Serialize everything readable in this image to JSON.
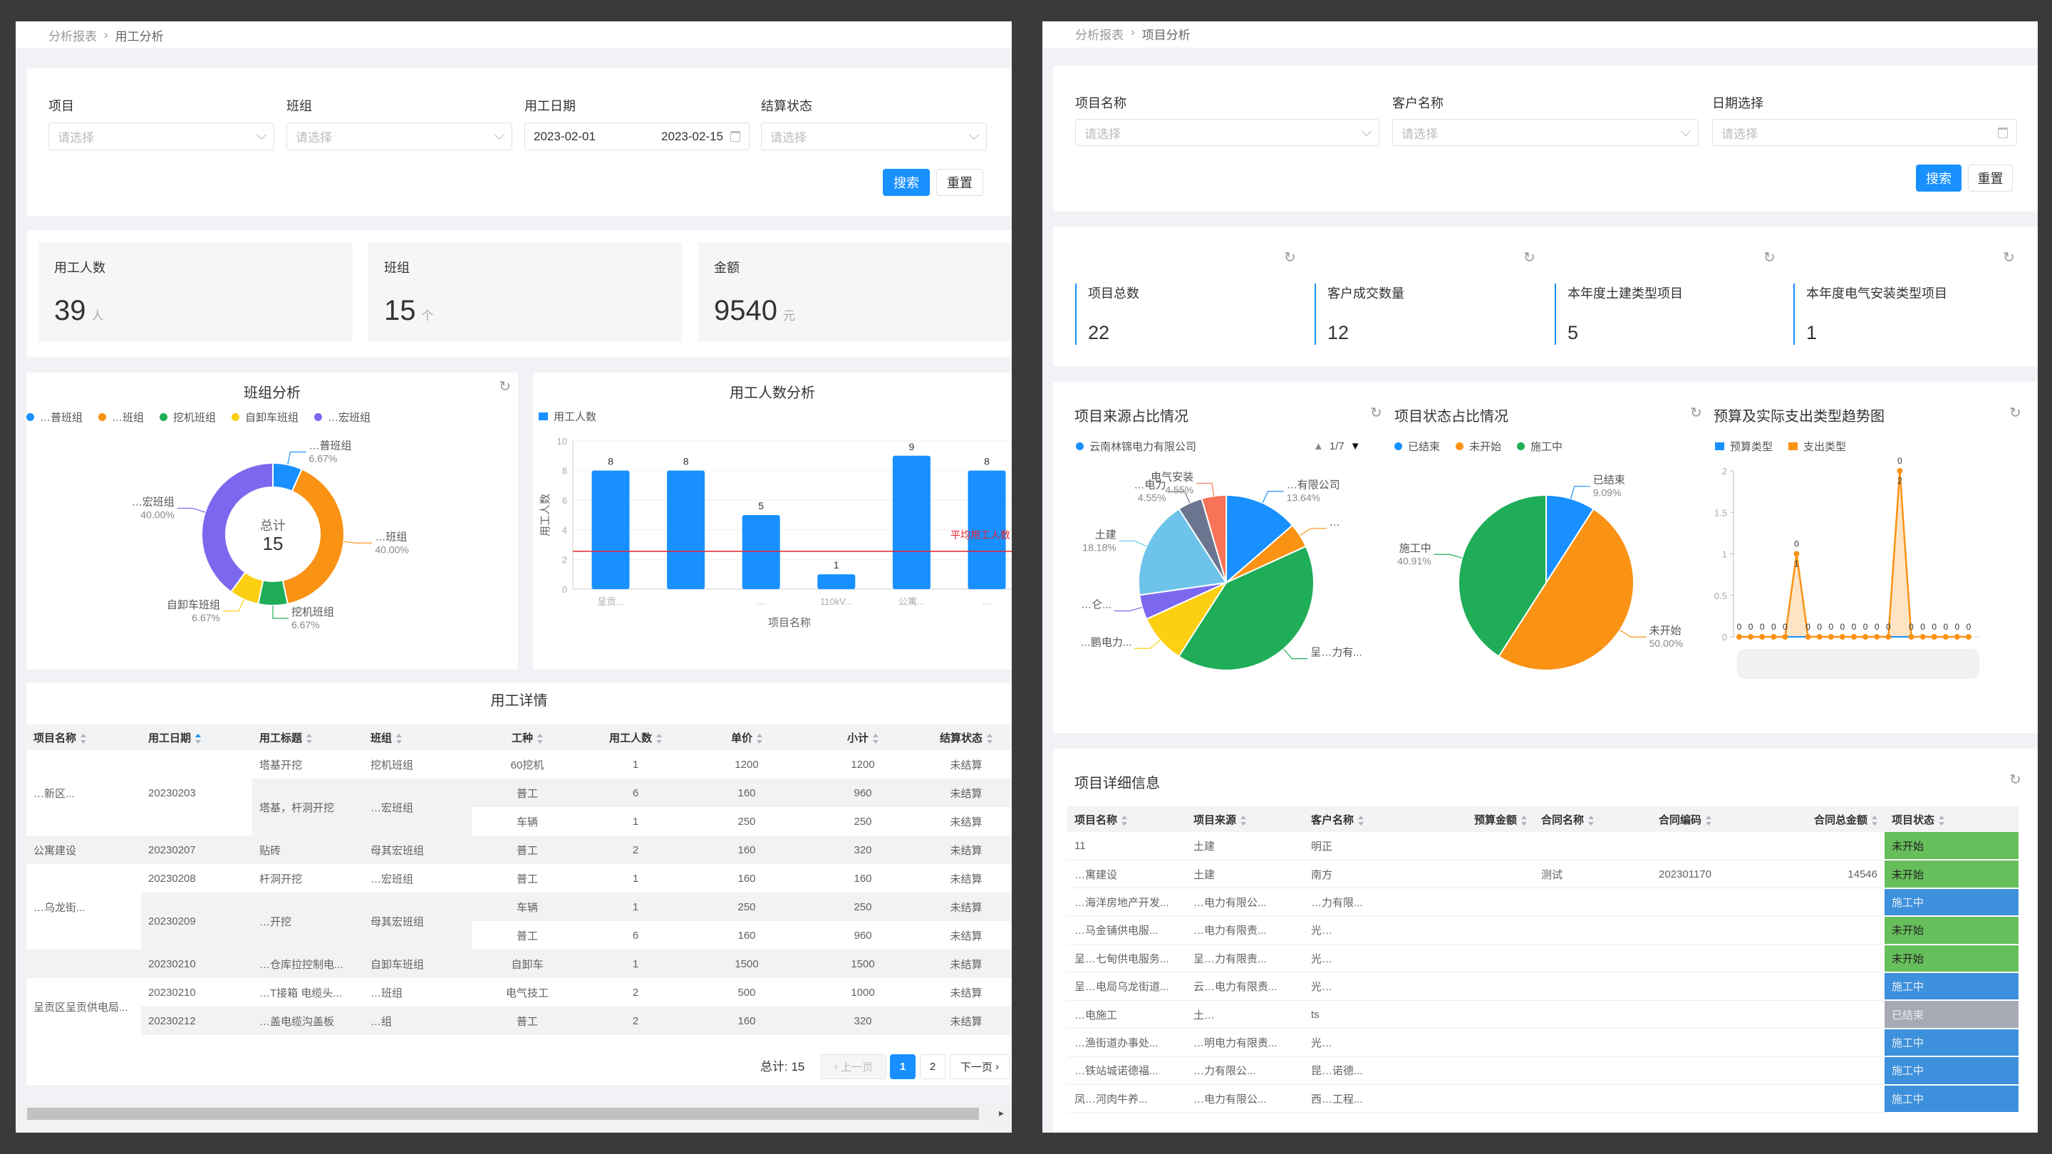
{
  "left": {
    "breadcrumb": {
      "parent": "分析报表",
      "current": "用工分析"
    },
    "filters": {
      "project": {
        "label": "项目",
        "placeholder": "请选择"
      },
      "team": {
        "label": "班组",
        "placeholder": "请选择"
      },
      "date": {
        "label": "用工日期",
        "start": "2023-02-01",
        "end": "2023-02-15"
      },
      "status": {
        "label": "结算状态",
        "placeholder": "请选择"
      }
    },
    "search_label": "搜索",
    "reset_label": "重置",
    "stats": [
      {
        "label": "用工人数",
        "value": "39",
        "unit": "人"
      },
      {
        "label": "班组",
        "value": "15",
        "unit": "个"
      },
      {
        "label": "金额",
        "value": "9540",
        "unit": "元"
      }
    ],
    "table": {
      "title": "用工详情",
      "columns": [
        "项目名称",
        "用工日期",
        "用工标题",
        "班组",
        "工种",
        "用工人数",
        "单价",
        "小计",
        "结算状态"
      ],
      "sorted_column": "用工日期",
      "rows": [
        [
          "…新区...",
          "20230203",
          "塔基开挖",
          "挖机班组",
          "60挖机",
          "1",
          "1200",
          "1200",
          "未结算"
        ],
        [
          null,
          null,
          "塔基，杆洞开挖",
          "…宏班组",
          "普工",
          "6",
          "160",
          "960",
          "未结算"
        ],
        [
          null,
          null,
          null,
          null,
          "车辆",
          "1",
          "250",
          "250",
          "未结算"
        ],
        [
          "公寓建设",
          "20230207",
          "贴砖",
          "母其宏班组",
          "普工",
          "2",
          "160",
          "320",
          "未结算"
        ],
        [
          "…乌龙街...",
          "20230208",
          "杆洞开挖",
          "…宏班组",
          "普工",
          "1",
          "160",
          "160",
          "未结算"
        ],
        [
          null,
          "20230209",
          "…开挖",
          "母其宏班组",
          "车辆",
          "1",
          "250",
          "250",
          "未结算"
        ],
        [
          null,
          null,
          null,
          null,
          "普工",
          "6",
          "160",
          "960",
          "未结算"
        ],
        [
          "",
          "20230210",
          "…仓库拉控制电...",
          "自卸车班组",
          "自卸车",
          "1",
          "1500",
          "1500",
          "未结算"
        ],
        [
          "呈贡区呈贡供电局...",
          "20230210",
          "…T接箱 电缆头...",
          "…班组",
          "电气技工",
          "2",
          "500",
          "1000",
          "未结算"
        ],
        [
          null,
          "20230212",
          "…盖电缆沟盖板",
          "…组",
          "普工",
          "2",
          "160",
          "320",
          "未结算"
        ]
      ]
    },
    "pagination": {
      "total_label": "总计: 15",
      "prev": "上一页",
      "pages": [
        "1",
        "2"
      ],
      "current": "1",
      "next": "下一页"
    }
  },
  "right": {
    "breadcrumb": {
      "parent": "分析报表",
      "current": "项目分析"
    },
    "filters": {
      "project_name": {
        "label": "项目名称",
        "placeholder": "请选择"
      },
      "client_name": {
        "label": "客户名称",
        "placeholder": "请选择"
      },
      "date": {
        "label": "日期选择",
        "placeholder": "请选择"
      }
    },
    "search_label": "搜索",
    "reset_label": "重置",
    "stats": [
      {
        "label": "项目总数",
        "value": "22"
      },
      {
        "label": "客户成交数量",
        "value": "12"
      },
      {
        "label": "本年度土建类型项目",
        "value": "5"
      },
      {
        "label": "本年度电气安装类型项目",
        "value": "1"
      }
    ],
    "table": {
      "title": "项目详细信息",
      "columns": [
        "项目名称",
        "项目来源",
        "客户名称",
        "预算金额",
        "合同名称",
        "合同编码",
        "合同总金额",
        "项目状态"
      ],
      "status_colors": {
        "未开始": "#67bf5c",
        "施工中": "#3d90dc",
        "已结束": "#a6aab3"
      },
      "rows": [
        [
          "11",
          "土建",
          "明正",
          "",
          "",
          "",
          "",
          "未开始"
        ],
        [
          "…寓建设",
          "土建",
          "南方",
          "",
          "测试",
          "202301170",
          "14546",
          "未开始"
        ],
        [
          "…海洋房地产开发...",
          "…电力有限公...",
          "…力有限...",
          "",
          "",
          "",
          "",
          "施工中"
        ],
        [
          "…马金铺供电服...",
          "…电力有限责...",
          "光…",
          "",
          "",
          "",
          "",
          "未开始"
        ],
        [
          "呈…七甸供电服务...",
          "呈…力有限责...",
          "光…",
          "",
          "",
          "",
          "",
          "未开始"
        ],
        [
          "呈…电局乌龙街道...",
          "云…电力有限责...",
          "光…",
          "",
          "",
          "",
          "",
          "施工中"
        ],
        [
          "…电施工",
          "土…",
          "ts",
          "",
          "",
          "",
          "",
          "已结束"
        ],
        [
          "…渔街道办事处...",
          "…明电力有限责...",
          "光…",
          "",
          "",
          "",
          "",
          "施工中"
        ],
        [
          "…铁站城诺德福...",
          "…力有限公...",
          "昆…诺德...",
          "",
          "",
          "",
          "",
          "施工中"
        ],
        [
          "凤…河肉牛养...",
          "…电力有限公...",
          "西…工程...",
          "",
          "",
          "",
          "",
          "施工中"
        ]
      ]
    }
  },
  "chart_data": [
    {
      "type": "pie",
      "title": "班组分析",
      "center_label": "总计",
      "center_value": "15",
      "legend": "top",
      "categories": [
        "…普班组",
        "…班组",
        "挖机班组",
        "自卸车班组",
        "…宏班组"
      ],
      "values": [
        1,
        6,
        1,
        1,
        6
      ],
      "percent_labels": [
        "6.67%",
        "40.00%",
        "6.67%",
        "6.67%",
        "40.00%"
      ],
      "colors": [
        "#1890ff",
        "#fa9214",
        "#1fad58",
        "#fccf12",
        "#7b68ee"
      ]
    },
    {
      "type": "bar",
      "title": "用工人数分析",
      "legend": "top-left",
      "categories": [
        "呈贡...",
        "",
        "…",
        "110kV...",
        "公寓...",
        "…"
      ],
      "series": [
        {
          "name": "用工人数",
          "values": [
            8,
            8,
            5,
            1,
            9,
            8
          ]
        }
      ],
      "xlabel": "项目名称",
      "ylabel": "用工人数",
      "ylim": [
        0,
        10
      ],
      "yticks": [
        0,
        2,
        4,
        6,
        8,
        10
      ],
      "markline": {
        "label": "平均用工人数",
        "value": 2.55,
        "color": "#e8242c"
      },
      "color": "#1890ff"
    },
    {
      "type": "pie",
      "title": "项目来源占比情况",
      "legend": "top",
      "legend_item": "云南林锦电力有限公司",
      "legend_page": "1/7",
      "slices": [
        {
          "label": "…有限公司",
          "percent": 13.64,
          "percent_label": "13.64%",
          "color": "#1890ff"
        },
        {
          "label": "…",
          "percent": 4.55,
          "percent_label": "",
          "color": "#fa9214"
        },
        {
          "label": "呈…力有...",
          "percent": 40.91,
          "percent_label": "",
          "color": "#1fad58"
        },
        {
          "label": "…鹏电力...",
          "percent": 9.09,
          "percent_label": "",
          "color": "#fccf12"
        },
        {
          "label": "…仑...",
          "percent": 4.55,
          "percent_label": "",
          "color": "#7b68ee"
        },
        {
          "label": "土建",
          "percent": 18.18,
          "percent_label": "18.18%",
          "color": "#6ec3ea"
        },
        {
          "label": "…电力",
          "percent": 4.55,
          "percent_label": "4.55%",
          "color": "#6b7590"
        },
        {
          "label": "电气安装",
          "percent": 4.55,
          "percent_label": "4.55%",
          "color": "#f87358"
        }
      ]
    },
    {
      "type": "pie",
      "title": "项目状态占比情况",
      "legend": "top",
      "slices": [
        {
          "label": "已结束",
          "percent": 9.09,
          "percent_label": "9.09%",
          "color": "#1890ff"
        },
        {
          "label": "未开始",
          "percent": 50.0,
          "percent_label": "50.00%",
          "color": "#fa9214"
        },
        {
          "label": "施工中",
          "percent": 40.91,
          "percent_label": "40.91%",
          "color": "#1fad58"
        }
      ]
    },
    {
      "type": "area",
      "title": "预算及实际支出类型趋势图",
      "legend": "top-left",
      "ylim": [
        0,
        2
      ],
      "yticks": [
        0,
        0.5,
        1,
        1.5,
        2
      ],
      "series": [
        {
          "name": "预算类型",
          "color": "#1890ff",
          "values": [
            0,
            0,
            0,
            0,
            0,
            0,
            0,
            0,
            0,
            0,
            0,
            0,
            0,
            0,
            0,
            0,
            0,
            0,
            0,
            0,
            0
          ]
        },
        {
          "name": "支出类型",
          "color": "#fa9214",
          "values": [
            0,
            0,
            0,
            0,
            0,
            1,
            0,
            0,
            0,
            0,
            0,
            0,
            0,
            0,
            2,
            0,
            0,
            0,
            0,
            0,
            0
          ]
        }
      ]
    }
  ]
}
